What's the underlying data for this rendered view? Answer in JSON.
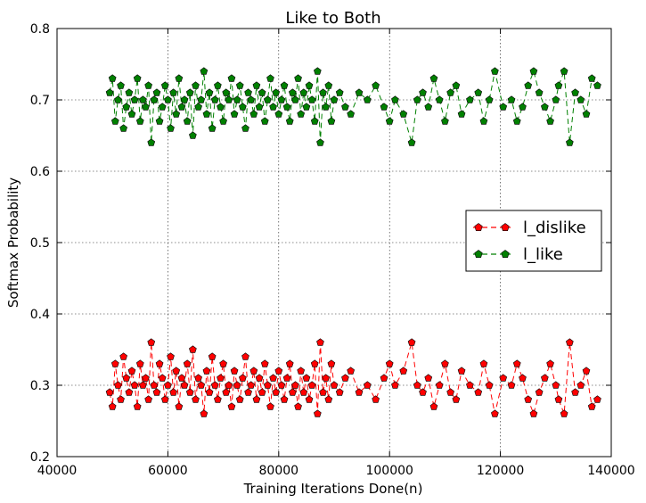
{
  "chart_data": {
    "type": "line",
    "title": "Like to Both",
    "xlabel": "Training Iterations Done(n)",
    "ylabel": "Softmax Probability",
    "xlim": [
      40000,
      140000
    ],
    "ylim": [
      0.2,
      0.8
    ],
    "xticks": [
      "40000",
      "60000",
      "80000",
      "100000",
      "120000",
      "140000"
    ],
    "yticks": [
      "0.2",
      "0.3",
      "0.4",
      "0.5",
      "0.6",
      "0.7",
      "0.8"
    ],
    "grid": true,
    "legend_position": "center-right",
    "series": [
      {
        "name": "l_dislike",
        "color": "#ff0000",
        "marker": "pentagon",
        "linestyle": "dashed",
        "x": [
          49500,
          50000,
          50500,
          51000,
          51500,
          52000,
          52500,
          53000,
          53500,
          54000,
          54500,
          55000,
          55500,
          56000,
          56500,
          57000,
          57500,
          58000,
          58500,
          59000,
          59500,
          60000,
          60500,
          61000,
          61500,
          62000,
          62500,
          63000,
          63500,
          64000,
          64500,
          65000,
          65500,
          66000,
          66500,
          67000,
          67500,
          68000,
          68500,
          69000,
          69500,
          70000,
          70500,
          71000,
          71500,
          72000,
          72500,
          73000,
          73500,
          74000,
          74500,
          75000,
          75500,
          76000,
          76500,
          77000,
          77500,
          78000,
          78500,
          79000,
          79500,
          80000,
          80500,
          81000,
          81500,
          82000,
          82500,
          83000,
          83500,
          84000,
          84500,
          85000,
          85500,
          86000,
          86500,
          87000,
          87500,
          88000,
          88500,
          89000,
          89500,
          90000,
          91000,
          92000,
          93000,
          94500,
          96000,
          97500,
          99000,
          100000,
          101000,
          102500,
          104000,
          105000,
          106000,
          107000,
          108000,
          109000,
          110000,
          111000,
          112000,
          113000,
          114500,
          116000,
          117000,
          118000,
          119000,
          120500,
          122000,
          123000,
          124000,
          125000,
          126000,
          127000,
          128000,
          129000,
          130000,
          130500,
          131500,
          132500,
          133500,
          134500,
          135500,
          136500,
          137500
        ],
        "values": [
          0.29,
          0.27,
          0.33,
          0.3,
          0.28,
          0.34,
          0.31,
          0.29,
          0.32,
          0.3,
          0.27,
          0.33,
          0.3,
          0.31,
          0.28,
          0.36,
          0.3,
          0.29,
          0.33,
          0.31,
          0.28,
          0.3,
          0.34,
          0.29,
          0.32,
          0.27,
          0.31,
          0.3,
          0.33,
          0.29,
          0.35,
          0.28,
          0.31,
          0.3,
          0.26,
          0.32,
          0.29,
          0.34,
          0.3,
          0.28,
          0.31,
          0.33,
          0.29,
          0.3,
          0.27,
          0.32,
          0.3,
          0.28,
          0.31,
          0.34,
          0.29,
          0.3,
          0.32,
          0.28,
          0.31,
          0.29,
          0.33,
          0.3,
          0.27,
          0.31,
          0.29,
          0.32,
          0.3,
          0.28,
          0.31,
          0.33,
          0.29,
          0.3,
          0.27,
          0.32,
          0.29,
          0.31,
          0.28,
          0.3,
          0.33,
          0.26,
          0.36,
          0.29,
          0.31,
          0.28,
          0.33,
          0.3,
          0.29,
          0.31,
          0.32,
          0.29,
          0.3,
          0.28,
          0.31,
          0.33,
          0.3,
          0.32,
          0.36,
          0.3,
          0.29,
          0.31,
          0.27,
          0.3,
          0.33,
          0.29,
          0.28,
          0.32,
          0.3,
          0.29,
          0.33,
          0.3,
          0.26,
          0.31,
          0.3,
          0.33,
          0.31,
          0.28,
          0.26,
          0.29,
          0.31,
          0.33,
          0.3,
          0.28,
          0.26,
          0.36,
          0.29,
          0.3,
          0.32,
          0.27,
          0.28
        ]
      },
      {
        "name": "l_like",
        "color": "#008000",
        "marker": "pentagon",
        "linestyle": "dashed",
        "x": [
          49500,
          50000,
          50500,
          51000,
          51500,
          52000,
          52500,
          53000,
          53500,
          54000,
          54500,
          55000,
          55500,
          56000,
          56500,
          57000,
          57500,
          58000,
          58500,
          59000,
          59500,
          60000,
          60500,
          61000,
          61500,
          62000,
          62500,
          63000,
          63500,
          64000,
          64500,
          65000,
          65500,
          66000,
          66500,
          67000,
          67500,
          68000,
          68500,
          69000,
          69500,
          70000,
          70500,
          71000,
          71500,
          72000,
          72500,
          73000,
          73500,
          74000,
          74500,
          75000,
          75500,
          76000,
          76500,
          77000,
          77500,
          78000,
          78500,
          79000,
          79500,
          80000,
          80500,
          81000,
          81500,
          82000,
          82500,
          83000,
          83500,
          84000,
          84500,
          85000,
          85500,
          86000,
          86500,
          87000,
          87500,
          88000,
          88500,
          89000,
          89500,
          90000,
          91000,
          92000,
          93000,
          94500,
          96000,
          97500,
          99000,
          100000,
          101000,
          102500,
          104000,
          105000,
          106000,
          107000,
          108000,
          109000,
          110000,
          111000,
          112000,
          113000,
          114500,
          116000,
          117000,
          118000,
          119000,
          120500,
          122000,
          123000,
          124000,
          125000,
          126000,
          127000,
          128000,
          129000,
          130000,
          130500,
          131500,
          132500,
          133500,
          134500,
          135500,
          136500,
          137500
        ],
        "values": [
          0.71,
          0.73,
          0.67,
          0.7,
          0.72,
          0.66,
          0.69,
          0.71,
          0.68,
          0.7,
          0.73,
          0.67,
          0.7,
          0.69,
          0.72,
          0.64,
          0.7,
          0.71,
          0.67,
          0.69,
          0.72,
          0.7,
          0.66,
          0.71,
          0.68,
          0.73,
          0.69,
          0.7,
          0.67,
          0.71,
          0.65,
          0.72,
          0.69,
          0.7,
          0.74,
          0.68,
          0.71,
          0.66,
          0.7,
          0.72,
          0.69,
          0.67,
          0.71,
          0.7,
          0.73,
          0.68,
          0.7,
          0.72,
          0.69,
          0.66,
          0.71,
          0.7,
          0.68,
          0.72,
          0.69,
          0.71,
          0.67,
          0.7,
          0.73,
          0.69,
          0.71,
          0.68,
          0.7,
          0.72,
          0.69,
          0.67,
          0.71,
          0.7,
          0.73,
          0.68,
          0.71,
          0.69,
          0.72,
          0.7,
          0.67,
          0.74,
          0.64,
          0.71,
          0.69,
          0.72,
          0.67,
          0.7,
          0.71,
          0.69,
          0.68,
          0.71,
          0.7,
          0.72,
          0.69,
          0.67,
          0.7,
          0.68,
          0.64,
          0.7,
          0.71,
          0.69,
          0.73,
          0.7,
          0.67,
          0.71,
          0.72,
          0.68,
          0.7,
          0.71,
          0.67,
          0.7,
          0.74,
          0.69,
          0.7,
          0.67,
          0.69,
          0.72,
          0.74,
          0.71,
          0.69,
          0.67,
          0.7,
          0.72,
          0.74,
          0.64,
          0.71,
          0.7,
          0.68,
          0.73,
          0.72
        ]
      }
    ]
  }
}
